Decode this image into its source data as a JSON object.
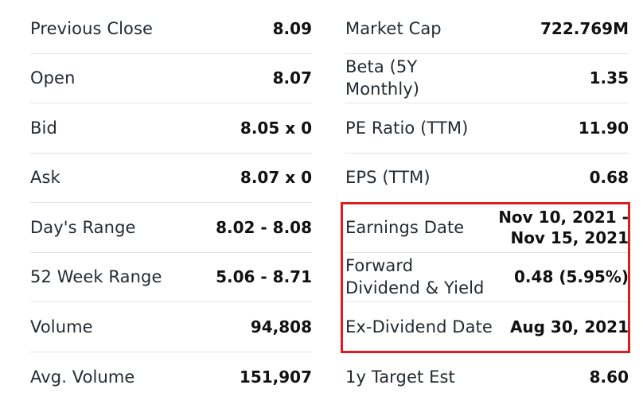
{
  "left": [
    {
      "label": "Previous Close",
      "value": "8.09"
    },
    {
      "label": "Open",
      "value": "8.07"
    },
    {
      "label": "Bid",
      "value": "8.05 x 0"
    },
    {
      "label": "Ask",
      "value": "8.07 x 0"
    },
    {
      "label": "Day's Range",
      "value": "8.02 - 8.08"
    },
    {
      "label": "52 Week Range",
      "value": "5.06 - 8.71"
    },
    {
      "label": "Volume",
      "value": "94,808"
    },
    {
      "label": "Avg. Volume",
      "value": "151,907"
    }
  ],
  "right": [
    {
      "label": "Market Cap",
      "value": "722.769M"
    },
    {
      "label_line1": "Beta (5Y",
      "label_line2": "Monthly)",
      "value": "1.35"
    },
    {
      "label": "PE Ratio (TTM)",
      "value": "11.90"
    },
    {
      "label": "EPS (TTM)",
      "value": "0.68"
    },
    {
      "label": "Earnings Date",
      "value_line1": "Nov 10, 2021 -",
      "value_line2": "Nov 15, 2021"
    },
    {
      "label_line1": "Forward",
      "label_line2": "Dividend & Yield",
      "value": "0.48 (5.95%)"
    },
    {
      "label": "Ex-Dividend Date",
      "value": "Aug 30, 2021"
    },
    {
      "label": "1y Target Est",
      "value": "8.60"
    }
  ],
  "highlight_color": "#e11b1b"
}
